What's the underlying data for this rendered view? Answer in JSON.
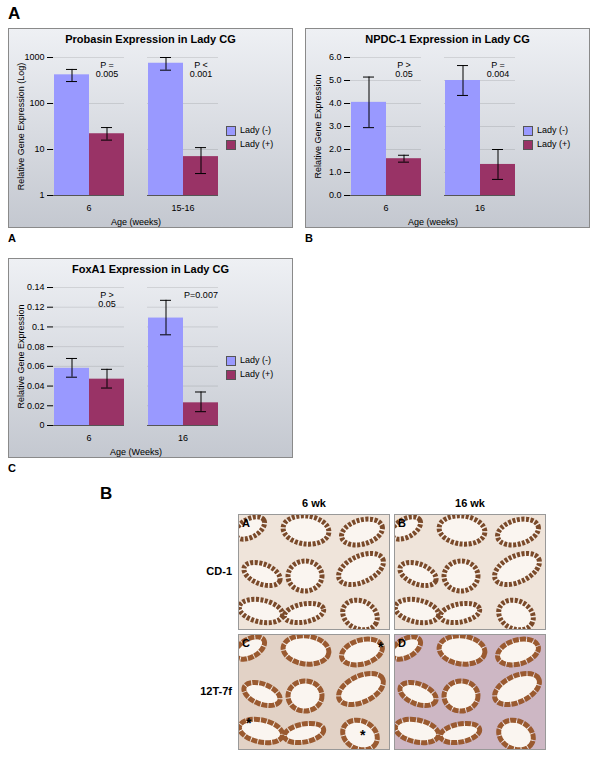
{
  "panel_label": "A",
  "chart_data": [
    {
      "type": "bar",
      "panel": "A",
      "title": "Probasin Expression in Lady CG",
      "xlabel": "Age (weeks)",
      "ylabel": "Relative Gene Expression (Log)",
      "categories": [
        "6",
        "15-16"
      ],
      "series": [
        {
          "name": "Lady (-)",
          "color": "#9999ff",
          "values": [
            420,
            750
          ],
          "error_bars": [
            [
              300,
              550
            ],
            [
              530,
              1000
            ]
          ]
        },
        {
          "name": "Lady (+)",
          "color": "#993366",
          "values": [
            22,
            7
          ],
          "error_bars": [
            [
              16,
              30
            ],
            [
              3,
              11
            ]
          ]
        }
      ],
      "log": "y",
      "ylim": [
        1,
        1000
      ],
      "yticks": [
        1,
        10,
        100,
        1000
      ],
      "grid": true,
      "legend": "right",
      "annotations": [
        {
          "category": "6",
          "text": "P = 0.005"
        },
        {
          "category": "15-16",
          "text": "P < 0.001"
        }
      ]
    },
    {
      "type": "bar",
      "panel": "B",
      "title": "NPDC-1 Expression in Lady CG",
      "xlabel": "Age (weeks)",
      "ylabel": "Relative Gene Expression",
      "categories": [
        "6",
        "16"
      ],
      "series": [
        {
          "name": "Lady (-)",
          "color": "#9999ff",
          "values": [
            4.05,
            5.0
          ],
          "error_bars": [
            [
              2.95,
              5.15
            ],
            [
              4.35,
              5.65
            ]
          ]
        },
        {
          "name": "Lady (+)",
          "color": "#993366",
          "values": [
            1.6,
            1.35
          ],
          "error_bars": [
            [
              1.45,
              1.75
            ],
            [
              0.7,
              2.0
            ]
          ]
        }
      ],
      "ylim": [
        0,
        6
      ],
      "yticks": [
        {
          "value": 0,
          "label": "0.0"
        },
        {
          "value": 1,
          "label": "1.0"
        },
        {
          "value": 2,
          "label": "2.0"
        },
        {
          "value": 3,
          "label": "3.0"
        },
        {
          "value": 4,
          "label": "4.0"
        },
        {
          "value": 5,
          "label": "5.0"
        },
        {
          "value": 6,
          "label": "6.0"
        }
      ],
      "grid": true,
      "legend": "right",
      "annotations": [
        {
          "category": "6",
          "text": "P > 0.05"
        },
        {
          "category": "16",
          "text": "P = 0.004"
        }
      ]
    },
    {
      "type": "bar",
      "panel": "C",
      "title": "FoxA1 Expression in Lady CG",
      "xlabel": "Age (Weeks)",
      "ylabel": "Relative Gene Expression",
      "categories": [
        "6",
        "16"
      ],
      "series": [
        {
          "name": "Lady (-)",
          "color": "#9999ff",
          "values": [
            0.058,
            0.109
          ],
          "error_bars": [
            [
              0.049,
              0.068
            ],
            [
              0.092,
              0.127
            ]
          ]
        },
        {
          "name": "Lady (+)",
          "color": "#993366",
          "values": [
            0.047,
            0.023
          ],
          "error_bars": [
            [
              0.038,
              0.057
            ],
            [
              0.014,
              0.034
            ]
          ]
        }
      ],
      "ylim": [
        0,
        0.14
      ],
      "yticks": [
        0,
        0.02,
        0.04,
        0.06,
        0.08,
        0.1,
        0.12,
        0.14
      ],
      "grid": true,
      "legend": "right",
      "annotations": [
        {
          "category": "6",
          "text": "P > 0.05"
        },
        {
          "category": "16",
          "text": "P=0.007"
        }
      ]
    }
  ],
  "micrographs": {
    "panel_label": "B",
    "columns": [
      "6 wk",
      "16 wk"
    ],
    "rows": [
      {
        "label": "CD-1",
        "panels": [
          {
            "letter": "A",
            "marks": []
          },
          {
            "letter": "B",
            "marks": []
          }
        ]
      },
      {
        "label": "12T-7f",
        "panels": [
          {
            "letter": "C",
            "marks": [
              "*",
              "*",
              "*"
            ]
          },
          {
            "letter": "D",
            "marks": []
          }
        ]
      }
    ]
  }
}
